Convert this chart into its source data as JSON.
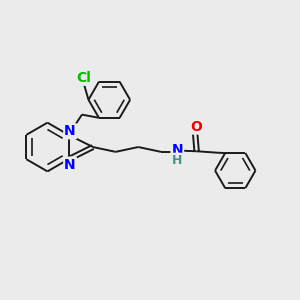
{
  "fig_bg": "#ebebeb",
  "bond_color": "#1a1a1a",
  "atom_colors": {
    "N": "#0000ee",
    "O": "#ee0000",
    "Cl": "#00bb00",
    "H": "#4a9090",
    "C": "#1a1a1a"
  },
  "font_size": 9.5
}
